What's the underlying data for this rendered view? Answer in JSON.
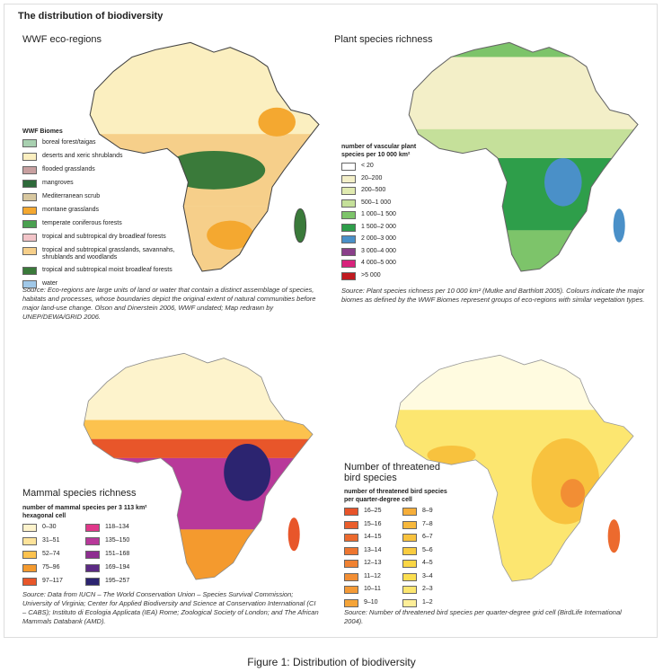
{
  "title": "The distribution of biodiversity",
  "panels": [
    {
      "title": "WWF eco-regions",
      "legend_title": "WWF Biomes",
      "legend": [
        {
          "label": "boreal forest/taigas",
          "color": "#a8d0b0"
        },
        {
          "label": "deserts and xeric shrublands",
          "color": "#fbefc0"
        },
        {
          "label": "flooded grasslands",
          "color": "#c8a0a0"
        },
        {
          "label": "mangroves",
          "color": "#2e6a3a"
        },
        {
          "label": "Mediterranean scrub",
          "color": "#d8c8a0"
        },
        {
          "label": "montane grasslands",
          "color": "#f4a830"
        },
        {
          "label": "temperate coniferous forests",
          "color": "#4aa050"
        },
        {
          "label": "tropical and subtropical dry broadleaf forests",
          "color": "#f2c4c8"
        },
        {
          "label": "tropical and subtropical grasslands, savannahs, shrublands and woodlands",
          "color": "#f6cf8a"
        },
        {
          "label": "tropical and subtropical moist broadleaf forests",
          "color": "#3a7a3a"
        },
        {
          "label": "water",
          "color": "#a0c8e8"
        }
      ],
      "source": "Source: Eco-regions are large units of land or water that contain a distinct assemblage of species, habitats and processes, whose boundaries depict the original extent of natural communities before major land-use change. Olson and Dinerstein 2006, WWF undated; Map redrawn by UNEP/DEWA/GRID 2006."
    },
    {
      "title": "Plant species richness",
      "legend_title": "number of vascular plant species per 10 000 km²",
      "legend": [
        {
          "label": "< 20",
          "color": "#ffffff"
        },
        {
          "label": "20–200",
          "color": "#f3efc8"
        },
        {
          "label": "200–500",
          "color": "#e0eab0"
        },
        {
          "label": "500–1 000",
          "color": "#c5e09a"
        },
        {
          "label": "1 000–1 500",
          "color": "#7dc46a"
        },
        {
          "label": "1 500–2 000",
          "color": "#2e9e4a"
        },
        {
          "label": "2 000–3 000",
          "color": "#4a90c8"
        },
        {
          "label": "3 000–4 000",
          "color": "#8a3f8a"
        },
        {
          "label": "4 000–5 000",
          "color": "#d8237c"
        },
        {
          "label": ">5 000",
          "color": "#c01a20"
        }
      ],
      "source": "Source: Plant species richness per 10 000 km² (Mutke and Barthlott 2005). Colours indicate the major biomes as defined by the WWF Biomes represent groups of eco-regions with similar vegetation types."
    },
    {
      "title": "Mammal species richness",
      "legend_title": "number of mammal species per 3 113 km² hexagonal cell",
      "legend": [
        {
          "label": "0–30",
          "color": "#fdf3cc"
        },
        {
          "label": "31–51",
          "color": "#fde39a"
        },
        {
          "label": "52–74",
          "color": "#fcc24e"
        },
        {
          "label": "75–96",
          "color": "#f49a2e"
        },
        {
          "label": "97–117",
          "color": "#e8562a"
        },
        {
          "label": "118–134",
          "color": "#e0388a"
        },
        {
          "label": "135–150",
          "color": "#b8399a"
        },
        {
          "label": "151–168",
          "color": "#8e2e90"
        },
        {
          "label": "169–194",
          "color": "#5c2a84"
        },
        {
          "label": "195–257",
          "color": "#2c2470"
        }
      ],
      "source": "Source: Data from IUCN – The World Conservation Union – Species Survival Commission; University of Virginia; Center for Applied Biodiversity and Science at Conservation International (CI – CABS); Instituto di Ecologia Applicata (IEA) Rome; Zoological Society of London; and The African Mammals Databank (AMD)."
    },
    {
      "title": "Number of threatened bird species",
      "legend_title": "number of threatened bird species per quarter-degree cell",
      "legend": [
        {
          "label": "16–25",
          "color": "#e8542a"
        },
        {
          "label": "15–16",
          "color": "#ea5e2c"
        },
        {
          "label": "14–15",
          "color": "#ec6a2e"
        },
        {
          "label": "13–14",
          "color": "#ee7630"
        },
        {
          "label": "12–13",
          "color": "#f08232"
        },
        {
          "label": "11–12",
          "color": "#f28e34"
        },
        {
          "label": "10–11",
          "color": "#f49a36"
        },
        {
          "label": "9–10",
          "color": "#f5a438"
        },
        {
          "label": "8–9",
          "color": "#f6ae3a"
        },
        {
          "label": "7–8",
          "color": "#f7b83c"
        },
        {
          "label": "6–7",
          "color": "#f8c23e"
        },
        {
          "label": "5–6",
          "color": "#f9cc40"
        },
        {
          "label": "4–5",
          "color": "#fad644"
        },
        {
          "label": "3–4",
          "color": "#fbde50"
        },
        {
          "label": "2–3",
          "color": "#fce670"
        },
        {
          "label": "1–2",
          "color": "#fdee98"
        }
      ],
      "source": "Source: Number of threatened bird species per quarter-degree grid cell (BirdLife International 2004)."
    }
  ],
  "caption": "Figure 1: Distribution of biodiversity"
}
